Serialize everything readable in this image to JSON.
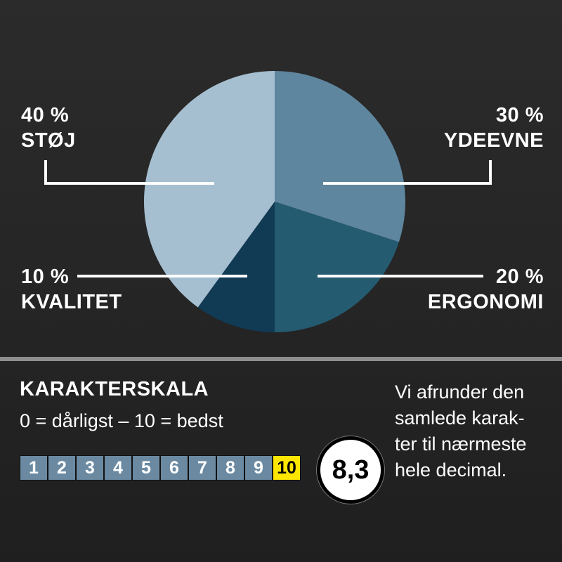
{
  "chart_data": {
    "type": "pie",
    "slices": [
      {
        "label": "YDEEVNE",
        "value": 30,
        "pct_label": "30 %",
        "color": "#5f869f"
      },
      {
        "label": "ERGONOMI",
        "value": 20,
        "pct_label": "20 %",
        "color": "#245b70"
      },
      {
        "label": "KVALITET",
        "value": 10,
        "pct_label": "10 %",
        "color": "#113a55"
      },
      {
        "label": "STØJ",
        "value": 40,
        "pct_label": "40 %",
        "color": "#a6bfd0"
      }
    ]
  },
  "scale": {
    "title": "KARAKTERSKALA",
    "description": "0 = dårligst – 10 = bedst",
    "numbers": [
      "1",
      "2",
      "3",
      "4",
      "5",
      "6",
      "7",
      "8",
      "9",
      "10"
    ],
    "cell_color": "#6b8aa2",
    "highlight_color": "#ffe600"
  },
  "score": "8,3",
  "note_lines": [
    "Vi afrunder den",
    "samlede karak-",
    "ter til nærmeste",
    "hele decimal."
  ]
}
